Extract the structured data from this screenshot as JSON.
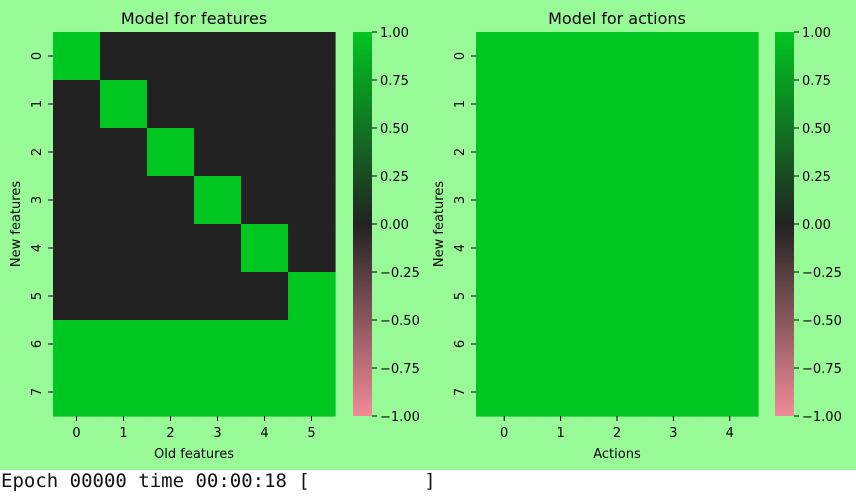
{
  "status": {
    "text": "Epoch 00000 time 00:00:18 [          ]"
  },
  "chart_data": [
    {
      "type": "heatmap",
      "title": "Model for features",
      "xlabel": "Old features",
      "ylabel": "New features",
      "x": [
        "0",
        "1",
        "2",
        "3",
        "4",
        "5"
      ],
      "y": [
        "0",
        "1",
        "2",
        "3",
        "4",
        "5",
        "6",
        "7"
      ],
      "values": [
        [
          1,
          0,
          0,
          0,
          0,
          0
        ],
        [
          0,
          1,
          0,
          0,
          0,
          0
        ],
        [
          0,
          0,
          1,
          0,
          0,
          0
        ],
        [
          0,
          0,
          0,
          1,
          0,
          0
        ],
        [
          0,
          0,
          0,
          0,
          1,
          0
        ],
        [
          0,
          0,
          0,
          0,
          0,
          1
        ],
        [
          1,
          1,
          1,
          1,
          1,
          1
        ],
        [
          1,
          1,
          1,
          1,
          1,
          1
        ]
      ],
      "vmin": -1,
      "vmax": 1,
      "colorbar_ticks": [
        "1.00",
        "0.75",
        "0.50",
        "0.25",
        "0.00",
        "−0.25",
        "−0.50",
        "−0.75",
        "−1.00"
      ],
      "colormap": {
        "low": "#f28b98",
        "mid": "#222222",
        "high": "#00c621"
      }
    },
    {
      "type": "heatmap",
      "title": "Model for actions",
      "xlabel": "Actions",
      "ylabel": "New features",
      "x": [
        "0",
        "1",
        "2",
        "3",
        "4"
      ],
      "y": [
        "0",
        "1",
        "2",
        "3",
        "4",
        "5",
        "6",
        "7"
      ],
      "values": [
        [
          1,
          1,
          1,
          1,
          1
        ],
        [
          1,
          1,
          1,
          1,
          1
        ],
        [
          1,
          1,
          1,
          1,
          1
        ],
        [
          1,
          1,
          1,
          1,
          1
        ],
        [
          1,
          1,
          1,
          1,
          1
        ],
        [
          1,
          1,
          1,
          1,
          1
        ],
        [
          1,
          1,
          1,
          1,
          1
        ],
        [
          1,
          1,
          1,
          1,
          1
        ]
      ],
      "vmin": -1,
      "vmax": 1,
      "colorbar_ticks": [
        "1.00",
        "0.75",
        "0.50",
        "0.25",
        "0.00",
        "−0.25",
        "−0.50",
        "−0.75",
        "−1.00"
      ],
      "colormap": {
        "low": "#f28b98",
        "mid": "#222222",
        "high": "#00c621"
      }
    }
  ]
}
